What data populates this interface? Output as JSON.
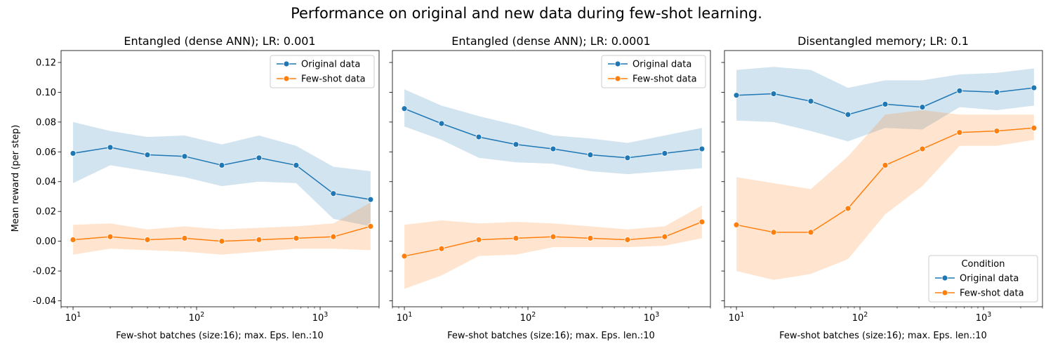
{
  "suptitle": "Performance on original and new data during few-shot learning.",
  "legend_title": "Condition",
  "colors": {
    "original": "#1f77b4",
    "fewshot": "#ff7f0e"
  },
  "chart_data": [
    {
      "type": "line",
      "title": "Entangled (dense ANN); LR: 0.001",
      "xlabel": "Few-shot batches (size:16); max. Eps. len.:10",
      "ylabel": "Mean reward (per step)",
      "xscale": "log",
      "xlim": [
        8,
        3000
      ],
      "ylim": [
        -0.044,
        0.128
      ],
      "xticks": [
        {
          "value": 10,
          "label": "10^1"
        },
        {
          "value": 100,
          "label": "10^2"
        },
        {
          "value": 1000,
          "label": "10^3"
        }
      ],
      "yticks": [
        "-0.04",
        "-0.02",
        "0.00",
        "0.02",
        "0.04",
        "0.06",
        "0.08",
        "0.10",
        "0.12"
      ],
      "legend": "top-right",
      "x": [
        10,
        20,
        40,
        80,
        160,
        320,
        640,
        1280,
        2560
      ],
      "series": [
        {
          "name": "Original data",
          "values": [
            0.059,
            0.063,
            0.058,
            0.057,
            0.051,
            0.056,
            0.051,
            0.032,
            0.028
          ],
          "ci_low": [
            0.039,
            0.051,
            0.047,
            0.043,
            0.037,
            0.04,
            0.039,
            0.015,
            0.01
          ],
          "ci_high": [
            0.08,
            0.074,
            0.07,
            0.071,
            0.065,
            0.071,
            0.064,
            0.05,
            0.047
          ]
        },
        {
          "name": "Few-shot data",
          "values": [
            0.001,
            0.003,
            0.001,
            0.002,
            0.0,
            0.001,
            0.002,
            0.003,
            0.01
          ],
          "ci_low": [
            -0.009,
            -0.005,
            -0.006,
            -0.007,
            -0.009,
            -0.007,
            -0.005,
            -0.005,
            -0.006
          ],
          "ci_high": [
            0.011,
            0.012,
            0.008,
            0.01,
            0.008,
            0.009,
            0.01,
            0.012,
            0.026
          ]
        }
      ]
    },
    {
      "type": "line",
      "title": "Entangled (dense ANN); LR: 0.0001",
      "xlabel": "Few-shot batches (size:16); max. Eps. len.:10",
      "ylabel": "",
      "xscale": "log",
      "xlim": [
        8,
        3000
      ],
      "ylim": [
        -0.044,
        0.128
      ],
      "xticks": [
        {
          "value": 10,
          "label": "10^1"
        },
        {
          "value": 100,
          "label": "10^2"
        },
        {
          "value": 1000,
          "label": "10^3"
        }
      ],
      "yticks": [],
      "legend": "top-right",
      "x": [
        10,
        20,
        40,
        80,
        160,
        320,
        640,
        1280,
        2560
      ],
      "series": [
        {
          "name": "Original data",
          "values": [
            0.089,
            0.079,
            0.07,
            0.065,
            0.062,
            0.058,
            0.056,
            0.059,
            0.062
          ],
          "ci_low": [
            0.077,
            0.068,
            0.056,
            0.053,
            0.052,
            0.047,
            0.045,
            0.047,
            0.049
          ],
          "ci_high": [
            0.102,
            0.091,
            0.084,
            0.078,
            0.071,
            0.069,
            0.066,
            0.071,
            0.076
          ]
        },
        {
          "name": "Few-shot data",
          "values": [
            -0.01,
            -0.005,
            0.001,
            0.002,
            0.003,
            0.002,
            0.001,
            0.003,
            0.013
          ],
          "ci_low": [
            -0.032,
            -0.023,
            -0.01,
            -0.009,
            -0.004,
            -0.004,
            -0.004,
            -0.003,
            0.002
          ],
          "ci_high": [
            0.011,
            0.014,
            0.012,
            0.013,
            0.012,
            0.01,
            0.008,
            0.01,
            0.024
          ]
        }
      ]
    },
    {
      "type": "line",
      "title": "Disentangled memory; LR: 0.1",
      "xlabel": "Few-shot batches (size:16); max. Eps. len.:10",
      "ylabel": "",
      "xscale": "log",
      "xlim": [
        8,
        3000
      ],
      "ylim": [
        -0.044,
        0.128
      ],
      "xticks": [
        {
          "value": 10,
          "label": "10^1"
        },
        {
          "value": 100,
          "label": "10^2"
        },
        {
          "value": 1000,
          "label": "10^3"
        }
      ],
      "yticks": [],
      "legend": "lower-right",
      "x": [
        10,
        20,
        40,
        80,
        160,
        320,
        640,
        1280,
        2560
      ],
      "series": [
        {
          "name": "Original data",
          "values": [
            0.098,
            0.099,
            0.094,
            0.085,
            0.092,
            0.09,
            0.101,
            0.1,
            0.103
          ],
          "ci_low": [
            0.081,
            0.08,
            0.074,
            0.067,
            0.076,
            0.075,
            0.09,
            0.088,
            0.091
          ],
          "ci_high": [
            0.115,
            0.117,
            0.115,
            0.103,
            0.108,
            0.108,
            0.112,
            0.113,
            0.116
          ]
        },
        {
          "name": "Few-shot data",
          "values": [
            0.011,
            0.006,
            0.006,
            0.022,
            0.051,
            0.062,
            0.073,
            0.074,
            0.076
          ],
          "ci_low": [
            -0.02,
            -0.026,
            -0.022,
            -0.012,
            0.018,
            0.037,
            0.064,
            0.064,
            0.068
          ],
          "ci_high": [
            0.043,
            0.039,
            0.035,
            0.057,
            0.085,
            0.088,
            0.085,
            0.085,
            0.085
          ]
        }
      ]
    }
  ]
}
